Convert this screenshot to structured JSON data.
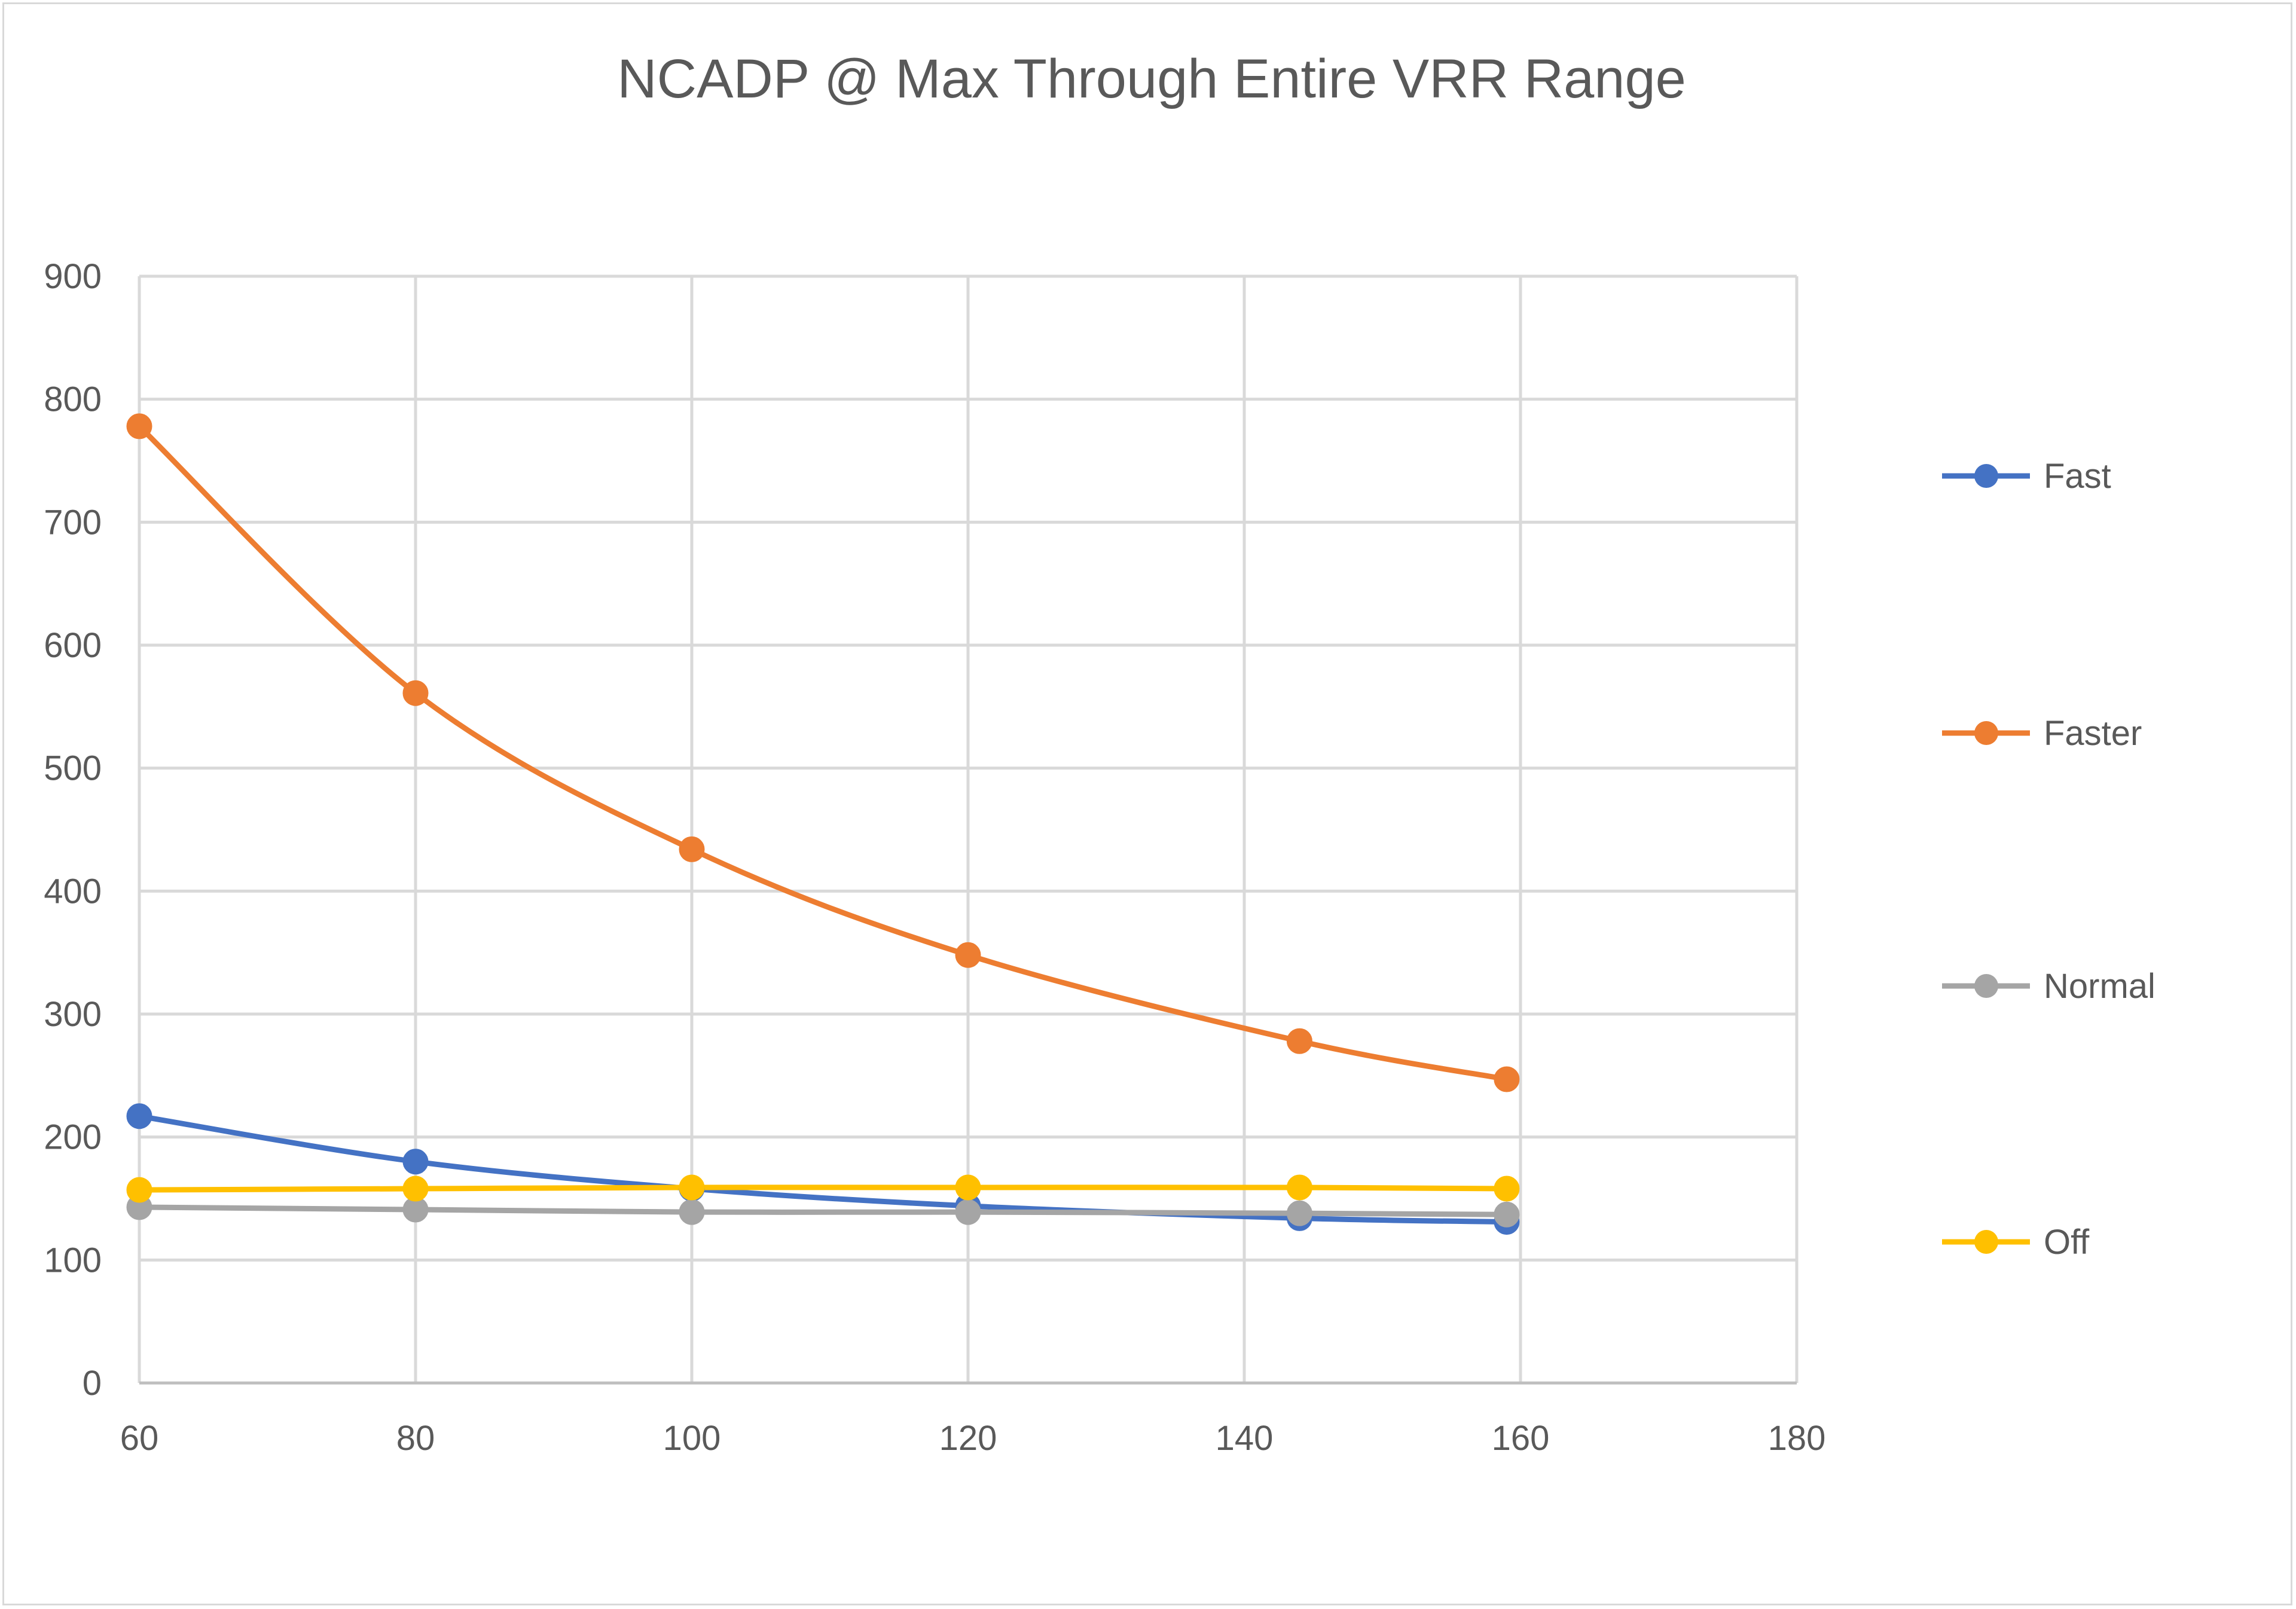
{
  "chart_data": {
    "type": "line",
    "title": "NCADP @ Max Through Entire VRR Range",
    "xlabel": "",
    "ylabel": "",
    "xlim": [
      60,
      180
    ],
    "ylim": [
      0,
      900
    ],
    "x_ticks": [
      60,
      80,
      100,
      120,
      140,
      160,
      180
    ],
    "y_ticks": [
      0,
      100,
      200,
      300,
      400,
      500,
      600,
      700,
      800,
      900
    ],
    "grid": true,
    "legend_position": "right",
    "x": [
      60,
      80,
      100,
      120,
      144,
      159
    ],
    "series": [
      {
        "name": "Fast",
        "color": "#4472C4",
        "values": [
          217,
          180,
          158,
          144,
          134,
          131
        ]
      },
      {
        "name": "Faster",
        "color": "#ED7D31",
        "values": [
          778,
          561,
          434,
          348,
          278,
          247
        ]
      },
      {
        "name": "Normal",
        "color": "#A5A5A5",
        "values": [
          143,
          141,
          139,
          139,
          138,
          137
        ]
      },
      {
        "name": "Off",
        "color": "#FFC000",
        "values": [
          157,
          158,
          159,
          159,
          159,
          158
        ]
      }
    ]
  }
}
